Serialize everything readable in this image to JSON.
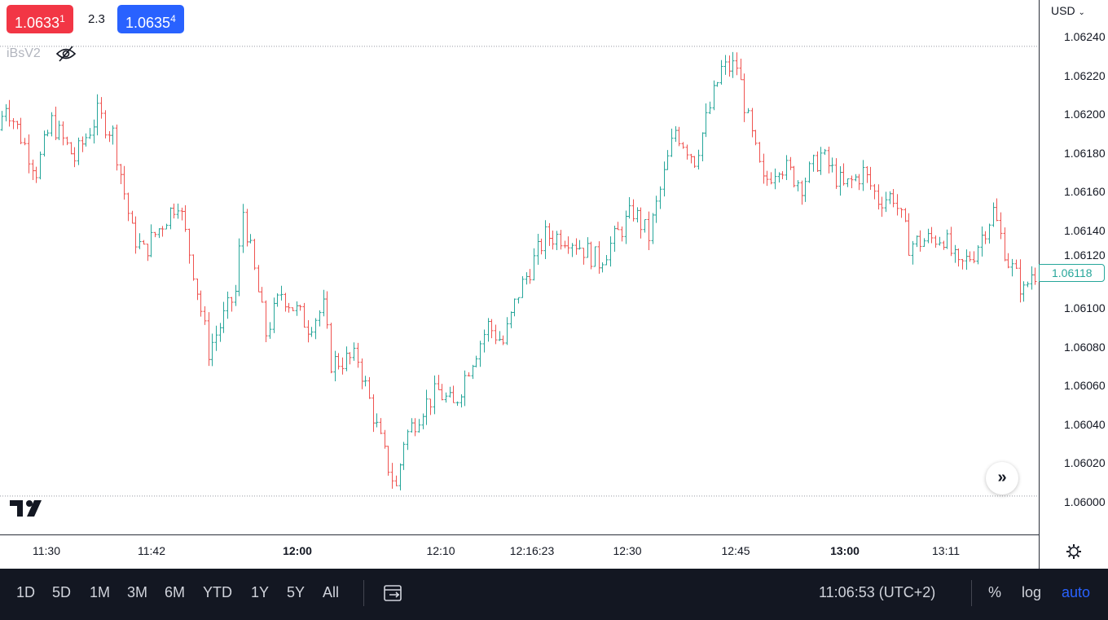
{
  "header": {
    "sell_price": "1.0633",
    "sell_sup": "1",
    "spread": "2.3",
    "buy_price": "1.0635",
    "buy_sup": "4",
    "indicator": "iBsV2"
  },
  "price_axis": {
    "currency": "USD",
    "labels": [
      "1.06240",
      "1.06220",
      "1.06200",
      "1.06180",
      "1.06160",
      "1.06140",
      "1.06120",
      "1.06100",
      "1.06080",
      "1.06060",
      "1.06040",
      "1.06020",
      "1.06000"
    ],
    "last_price": "1.06118"
  },
  "time_axis": {
    "labels": [
      {
        "t": "11:30",
        "bold": false
      },
      {
        "t": "11:42",
        "bold": false
      },
      {
        "t": "12:00",
        "bold": true
      },
      {
        "t": "12:10",
        "bold": false
      },
      {
        "t": "12:16:23",
        "bold": false
      },
      {
        "t": "12:30",
        "bold": false
      },
      {
        "t": "12:45",
        "bold": false
      },
      {
        "t": "13:00",
        "bold": true
      },
      {
        "t": "13:11",
        "bold": false
      }
    ]
  },
  "bottom": {
    "ranges": [
      "1D",
      "5D",
      "1M",
      "3M",
      "6M",
      "YTD",
      "1Y",
      "5Y",
      "All"
    ],
    "clock": "11:06:53 (UTC+2)",
    "percent": "%",
    "log": "log",
    "auto": "auto"
  },
  "colors": {
    "up": "#26a69a",
    "down": "#ef5350",
    "accent": "#2962ff"
  },
  "chart_data": {
    "type": "ohlc",
    "symbol_range": {
      "high": 1.06235,
      "low": 1.06003
    },
    "ylim": [
      1.06,
      1.0624
    ],
    "bar_count": 271,
    "anchors": [
      [
        0,
        1.06192
      ],
      [
        2,
        1.06206
      ],
      [
        10,
        1.06171
      ],
      [
        14,
        1.06196
      ],
      [
        20,
        1.06177
      ],
      [
        26,
        1.062
      ],
      [
        30,
        1.0619
      ],
      [
        35,
        1.06139
      ],
      [
        38,
        1.06129
      ],
      [
        47,
        1.06156
      ],
      [
        51,
        1.0612
      ],
      [
        55,
        1.06078
      ],
      [
        62,
        1.06108
      ],
      [
        64,
        1.0615
      ],
      [
        70,
        1.06087
      ],
      [
        74,
        1.06108
      ],
      [
        81,
        1.06091
      ],
      [
        85,
        1.061
      ],
      [
        87,
        1.06072
      ],
      [
        94,
        1.06074
      ],
      [
        98,
        1.06045
      ],
      [
        101,
        1.06024
      ],
      [
        104,
        1.06007
      ],
      [
        106,
        1.06032
      ],
      [
        111,
        1.06049
      ],
      [
        115,
        1.06057
      ],
      [
        119,
        1.06049
      ],
      [
        123,
        1.0607
      ],
      [
        128,
        1.06091
      ],
      [
        132,
        1.06082
      ],
      [
        136,
        1.06108
      ],
      [
        143,
        1.06137
      ],
      [
        149,
        1.06137
      ],
      [
        157,
        1.06124
      ],
      [
        166,
        1.0615
      ],
      [
        170,
        1.06137
      ],
      [
        177,
        1.06192
      ],
      [
        182,
        1.06177
      ],
      [
        189,
        1.06223
      ],
      [
        193,
        1.06225
      ],
      [
        196,
        1.06196
      ],
      [
        200,
        1.06164
      ],
      [
        204,
        1.06175
      ],
      [
        210,
        1.06164
      ],
      [
        215,
        1.06179
      ],
      [
        221,
        1.06162
      ],
      [
        226,
        1.0617
      ],
      [
        230,
        1.06156
      ],
      [
        234,
        1.06158
      ],
      [
        238,
        1.06133
      ],
      [
        247,
        1.06137
      ],
      [
        251,
        1.0612
      ],
      [
        255,
        1.06129
      ],
      [
        260,
        1.0615
      ],
      [
        264,
        1.06124
      ],
      [
        268,
        1.06108
      ],
      [
        270,
        1.06118
      ]
    ]
  }
}
